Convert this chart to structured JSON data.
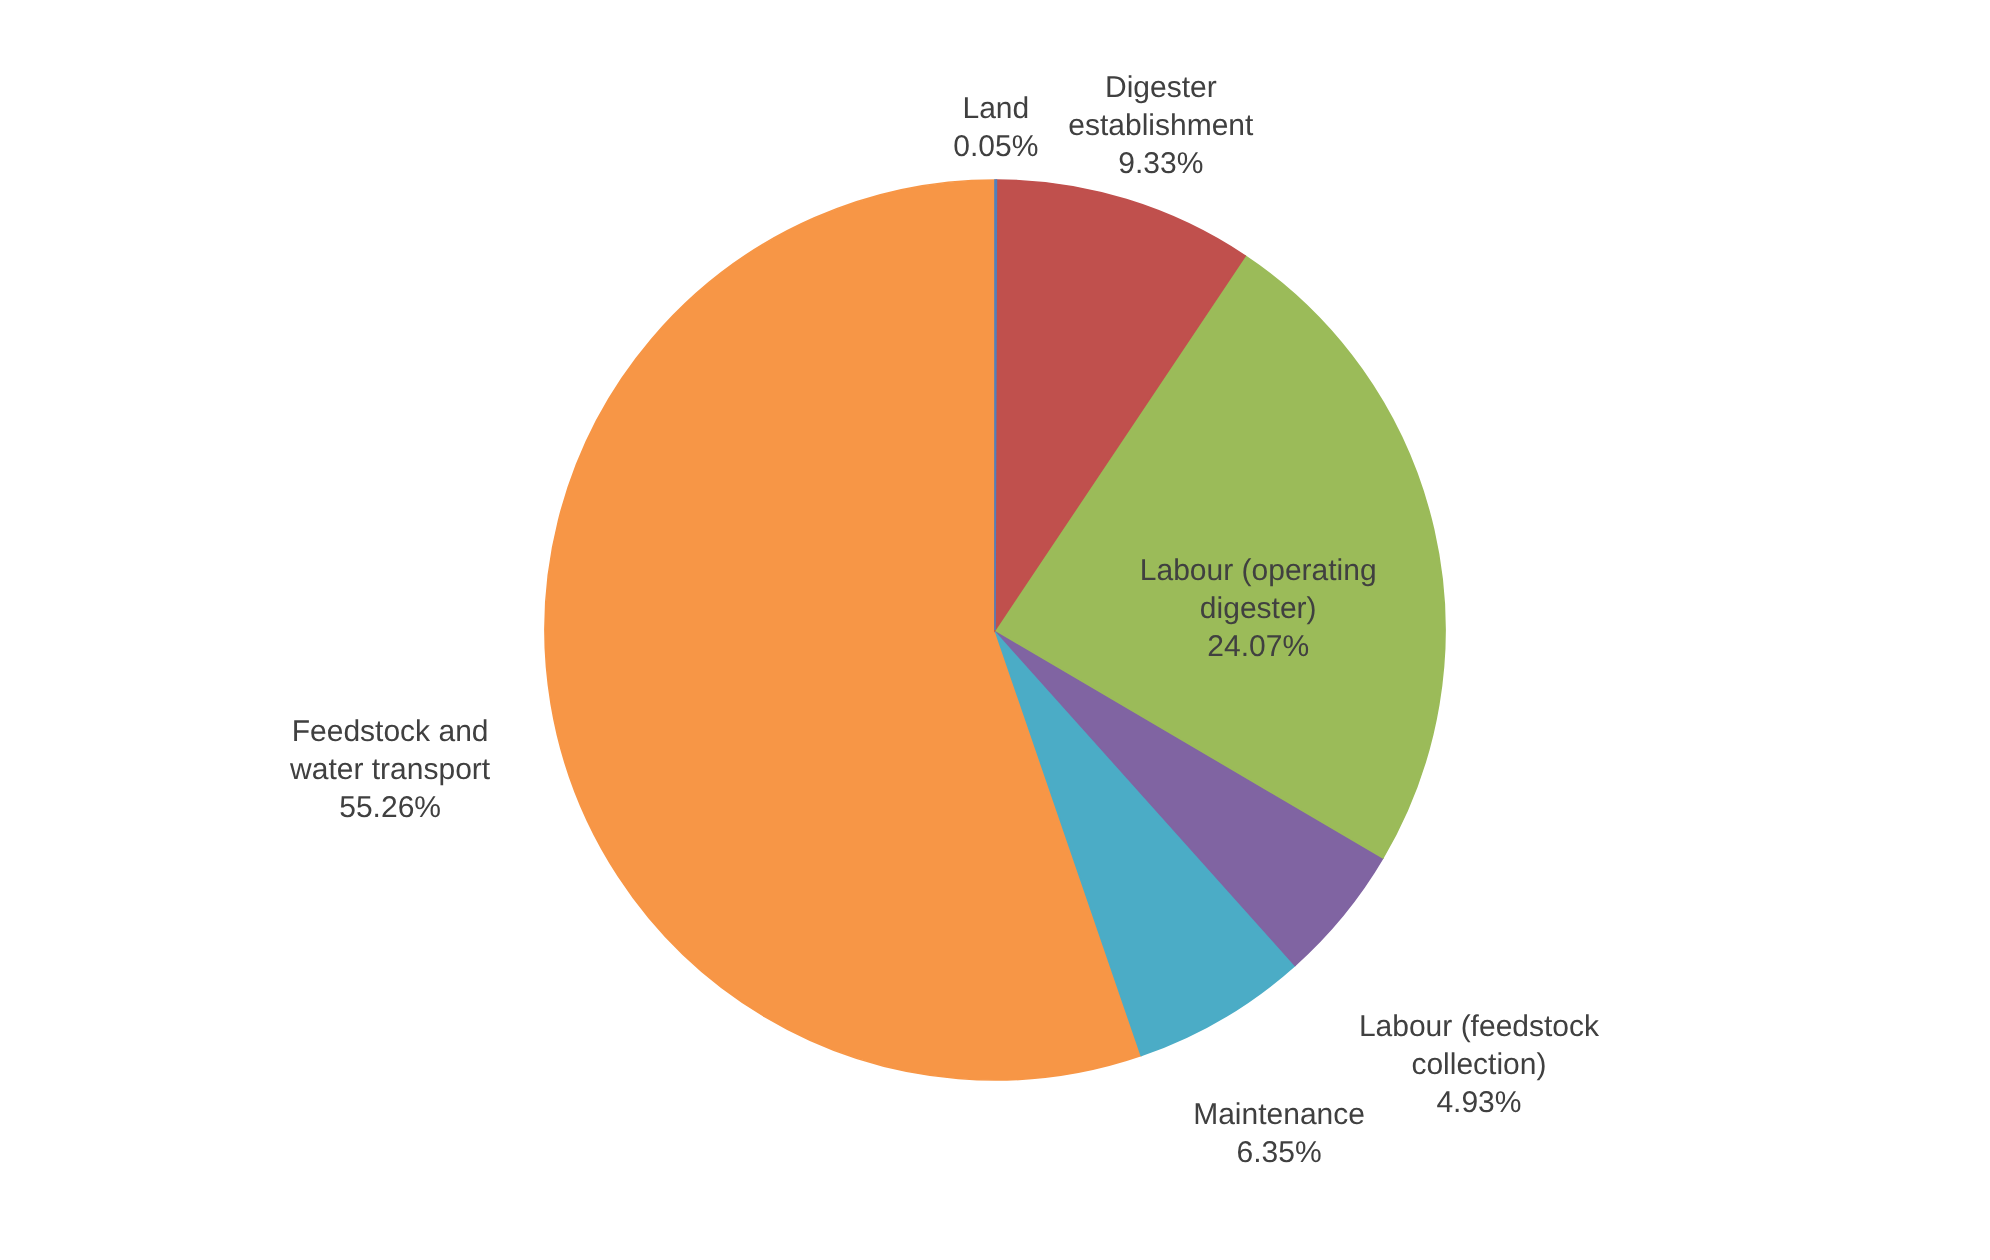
{
  "chart_data": {
    "type": "pie",
    "categories": [
      "Land",
      "Digester establishment",
      "Labour (operating digester)",
      "Labour (feedstock collection)",
      "Maintenance",
      "Feedstock and water transport"
    ],
    "values": [
      0.05,
      9.33,
      24.07,
      4.93,
      6.35,
      55.26
    ],
    "value_labels": [
      "0.05%",
      "9.33%",
      "24.07%",
      "4.93%",
      "6.35%",
      "55.26%"
    ],
    "colors": [
      "#4f81bd",
      "#c0504d",
      "#9bbb59",
      "#8064a2",
      "#4bacc6",
      "#f79646"
    ]
  }
}
